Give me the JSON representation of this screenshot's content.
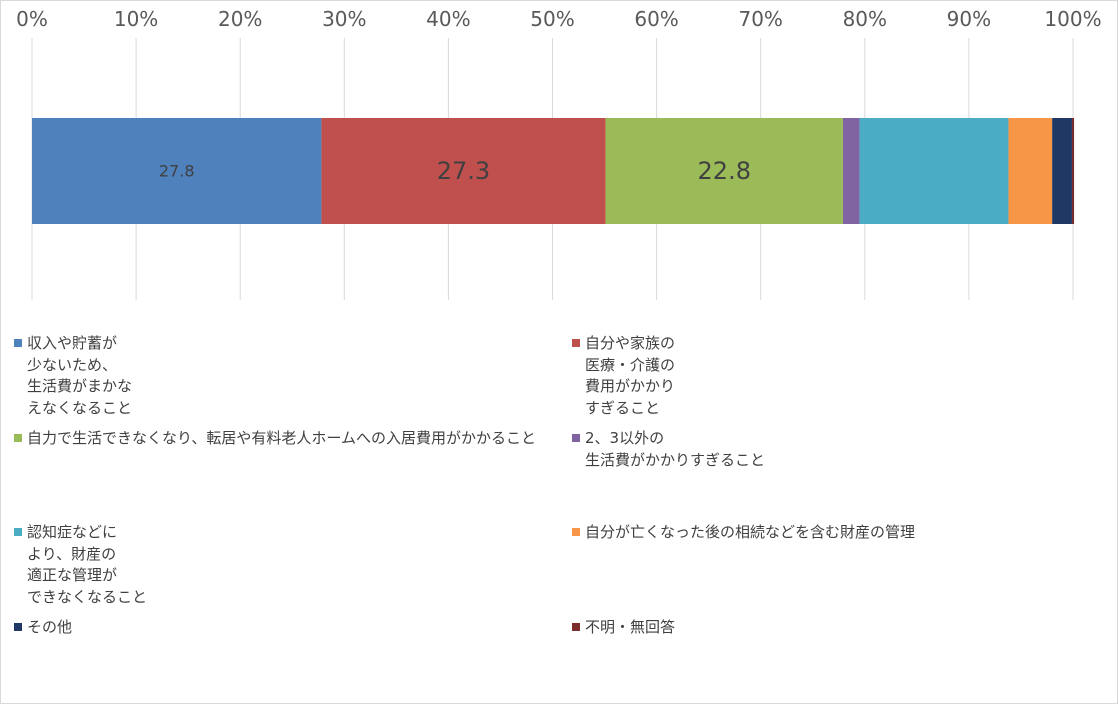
{
  "chart_data": {
    "type": "bar",
    "orientation": "horizontal",
    "stacked": true,
    "xlim": [
      0,
      100
    ],
    "x_ticks": [
      "0%",
      "10%",
      "20%",
      "30%",
      "40%",
      "50%",
      "60%",
      "70%",
      "80%",
      "90%",
      "100%"
    ],
    "grid": true,
    "legend_position": "bottom",
    "series": [
      {
        "name": "収入や貯蓄が\n少ないため、\n生活費がまかな\nえなくなること",
        "value": 27.8,
        "label": "27.8",
        "color": "#4f81bd"
      },
      {
        "name": "自分や家族の\n医療・介護の\n費用がかかり\nすぎること",
        "value": 27.3,
        "label": "27.3",
        "color": "#c0504d"
      },
      {
        "name": "自力で生活できなくなり、転居や有料老人ホームへの入居費用がかかること",
        "value": 22.8,
        "label": "22.8",
        "color": "#9bbb59"
      },
      {
        "name": "2、3以外の\n生活費がかかりすぎること",
        "value": 1.6,
        "label": "",
        "color": "#8064a2"
      },
      {
        "name": "認知症などに\nより、財産の\n適正な管理が\nできなくなること",
        "value": 14.3,
        "label": "",
        "color": "#4bacc6"
      },
      {
        "name": "自分が亡くなった後の相続などを含む財産の管理",
        "value": 4.2,
        "label": "",
        "color": "#f79646"
      },
      {
        "name": "その他",
        "value": 1.9,
        "label": "",
        "color": "#1f3864"
      },
      {
        "name": "不明・無回答",
        "value": 0.2,
        "label": "",
        "color": "#7b2c2c"
      }
    ]
  }
}
